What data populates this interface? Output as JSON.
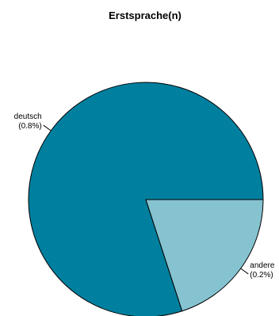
{
  "chart_data": {
    "type": "pie",
    "title": "Erstsprache(n)",
    "slices": [
      {
        "label": "deutsch",
        "pct_label": "(0.8%)",
        "value": 0.8,
        "color": "#007f9e"
      },
      {
        "label": "andere",
        "pct_label": "(0.2%)",
        "value": 0.2,
        "color": "#85c3d1"
      }
    ],
    "start_angle_deg": 0,
    "direction": "counterclockwise"
  }
}
